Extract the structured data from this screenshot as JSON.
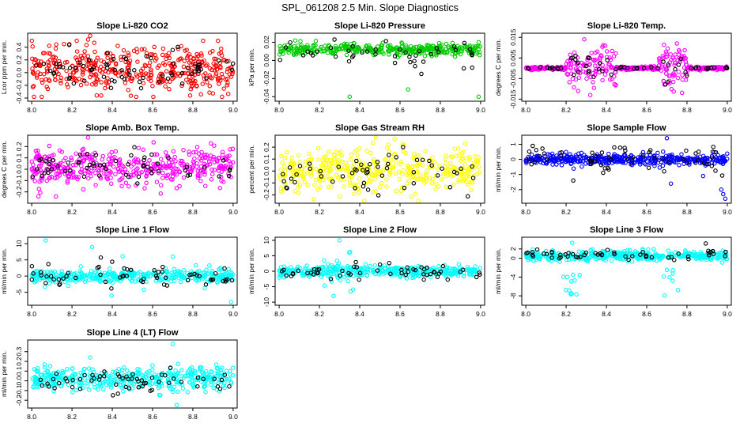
{
  "figure_title": "SPL_061208  2.5 Min. Slope Diagnostics",
  "chart_data": [
    {
      "type": "scatter",
      "title": "Slope Li-820 CO2",
      "ylabel": "Lcor ppm per min.",
      "xlim": [
        7.98,
        9.02
      ],
      "ylim": [
        -0.45,
        0.62
      ],
      "xticks": [
        "8.0",
        "8.2",
        "8.4",
        "8.6",
        "8.8",
        "9.0"
      ],
      "yticks": [
        "-0.4",
        "-0.2",
        "0.0",
        "0.2",
        "0.4"
      ],
      "series": [
        {
          "name": "primary",
          "color": "#ff0000",
          "values": "dense scatter, 8.0–9.0, mostly -0.3 to 0.4, max ~0.58"
        },
        {
          "name": "secondary",
          "color": "#000000",
          "values": "sparse scatter, -0.3 to 0.45"
        }
      ]
    },
    {
      "type": "scatter",
      "title": "Slope Li-820 Pressure",
      "ylabel": "kPa per min.",
      "xlim": [
        7.98,
        9.02
      ],
      "ylim": [
        -0.045,
        0.03
      ],
      "xticks": [
        "8.0",
        "8.2",
        "8.4",
        "8.6",
        "8.8",
        "9.0"
      ],
      "yticks": [
        "-0.04",
        "-0.02",
        "0.00",
        "0.02"
      ],
      "series": [
        {
          "name": "primary",
          "color": "#00cc00",
          "values": "tight band around 0.012; outliers -0.032 at 8.64, -0.04 at 8.35 and 8.99"
        },
        {
          "name": "secondary",
          "color": "#000000",
          "values": "sparse, -0.01 to 0.022"
        }
      ]
    },
    {
      "type": "scatter",
      "title": "Slope Li-820 Temp.",
      "ylabel": "degrees C per min.",
      "xlim": [
        7.98,
        9.02
      ],
      "ylim": [
        -0.016,
        0.017
      ],
      "xticks": [
        "8.0",
        "8.2",
        "8.4",
        "8.6",
        "8.8",
        "9.0"
      ],
      "yticks": [
        "-0.015",
        "-0.005",
        "0.005",
        "0.015"
      ],
      "series": [
        {
          "name": "primary",
          "color": "#ff00ff",
          "values": "near 0 at ends; spread to +/-0.012 between 8.2–8.45 and 8.65–8.8"
        },
        {
          "name": "secondary",
          "color": "#000000",
          "values": "near 0, sparse up to +/-0.006"
        }
      ]
    },
    {
      "type": "scatter",
      "title": "Slope Amb. Box Temp.",
      "ylabel": "degrees C per min.",
      "xlim": [
        7.98,
        9.02
      ],
      "ylim": [
        -0.3,
        0.3
      ],
      "xticks": [
        "8.0",
        "8.2",
        "8.4",
        "8.6",
        "8.8",
        "9.0"
      ],
      "yticks": [
        "-0.2",
        "-0.1",
        "0.0",
        "0.1",
        "0.2"
      ],
      "series": [
        {
          "name": "primary",
          "color": "#ff00ff",
          "values": "dense scatter around 0.02, range -0.25 to 0.28"
        },
        {
          "name": "secondary",
          "color": "#000000",
          "values": "sparse, -0.15 to 0.15"
        }
      ]
    },
    {
      "type": "scatter",
      "title": "Slope Gas Stream RH",
      "ylabel": "percent per min.",
      "xlim": [
        7.98,
        9.02
      ],
      "ylim": [
        -0.27,
        0.3
      ],
      "xticks": [
        "8.0",
        "8.2",
        "8.4",
        "8.6",
        "8.8",
        "9.0"
      ],
      "yticks": [
        "-0.2",
        "-0.1",
        "0.0",
        "0.1",
        "0.2"
      ],
      "series": [
        {
          "name": "primary",
          "color": "#ffff00",
          "values": "dense scatter around 0, range -0.25 to 0.28"
        },
        {
          "name": "secondary",
          "color": "#000000",
          "values": "sparse, -0.15 to 0.28"
        }
      ]
    },
    {
      "type": "scatter",
      "title": "Slope Sample Flow",
      "ylabel": "ml/min per min.",
      "xlim": [
        7.98,
        9.02
      ],
      "ylim": [
        -2.9,
        1.6
      ],
      "xticks": [
        "8.0",
        "8.2",
        "8.4",
        "8.6",
        "8.8",
        "9.0"
      ],
      "yticks": [
        "-2",
        "-1",
        "0",
        "1"
      ],
      "series": [
        {
          "name": "primary",
          "color": "#0000ff",
          "values": "tight band around 0; outliers 1.4 at 8.7, -2 to -2.6 near 8.98"
        },
        {
          "name": "secondary",
          "color": "#000000",
          "values": "sparse, -1.2 to 1"
        }
      ]
    },
    {
      "type": "scatter",
      "title": "Slope Line 1 Flow",
      "ylabel": "ml/min per min.",
      "xlim": [
        7.98,
        9.02
      ],
      "ylim": [
        -9,
        12
      ],
      "xticks": [
        "8.0",
        "8.2",
        "8.4",
        "8.6",
        "8.8",
        "9.0"
      ],
      "yticks": [
        "-5",
        "0",
        "5",
        "10"
      ],
      "series": [
        {
          "name": "primary",
          "color": "#00ffff",
          "values": "band around 0 with spikes to +/-8"
        },
        {
          "name": "secondary",
          "color": "#000000",
          "values": "sparse, -8 to 11"
        }
      ]
    },
    {
      "type": "scatter",
      "title": "Slope Line 2 Flow",
      "ylabel": "ml/min per min.",
      "xlim": [
        7.98,
        9.02
      ],
      "ylim": [
        -11,
        11
      ],
      "xticks": [
        "8.0",
        "8.2",
        "8.4",
        "8.6",
        "8.8",
        "9.0"
      ],
      "yticks": [
        "-10",
        "-5",
        "0",
        "5",
        "10"
      ],
      "series": [
        {
          "name": "primary",
          "color": "#00ffff",
          "values": "band around 0; spikes to -8 and +10 near 8.25–8.35"
        },
        {
          "name": "secondary",
          "color": "#000000",
          "values": "sparse, -3 to 5"
        }
      ]
    },
    {
      "type": "scatter",
      "title": "Slope Line 3 Flow",
      "ylabel": "ml/min per min.",
      "xlim": [
        7.98,
        9.02
      ],
      "ylim": [
        -10,
        4.5
      ],
      "xticks": [
        "8.0",
        "8.2",
        "8.4",
        "8.6",
        "8.8",
        "9.0"
      ],
      "yticks": [
        "-8",
        "-4",
        "0",
        "2"
      ],
      "series": [
        {
          "name": "primary",
          "color": "#00ffff",
          "values": "band around 0.5; dips to -8 near 8.22 and -9 near 8.72"
        },
        {
          "name": "secondary",
          "color": "#000000",
          "values": "sparse, -1 to 2"
        }
      ]
    },
    {
      "type": "scatter",
      "title": "Slope Line 4 (LT) Flow",
      "ylabel": "ml/min per min.",
      "xlim": [
        7.98,
        9.02
      ],
      "ylim": [
        -0.28,
        0.42
      ],
      "xticks": [
        "8.0",
        "8.2",
        "8.4",
        "8.6",
        "8.8",
        "9.0"
      ],
      "yticks": [
        "-0.2",
        "-0.1",
        "0.0",
        "0.1",
        "0.2",
        "0.3"
      ],
      "series": [
        {
          "name": "primary",
          "color": "#00ffff",
          "values": "band around 0.02, range -0.15 to 0.2; outliers 0.38 at 8.7, -0.25 at 8.72"
        },
        {
          "name": "secondary",
          "color": "#000000",
          "values": "sparse, -0.15 to 0.12"
        }
      ]
    }
  ]
}
